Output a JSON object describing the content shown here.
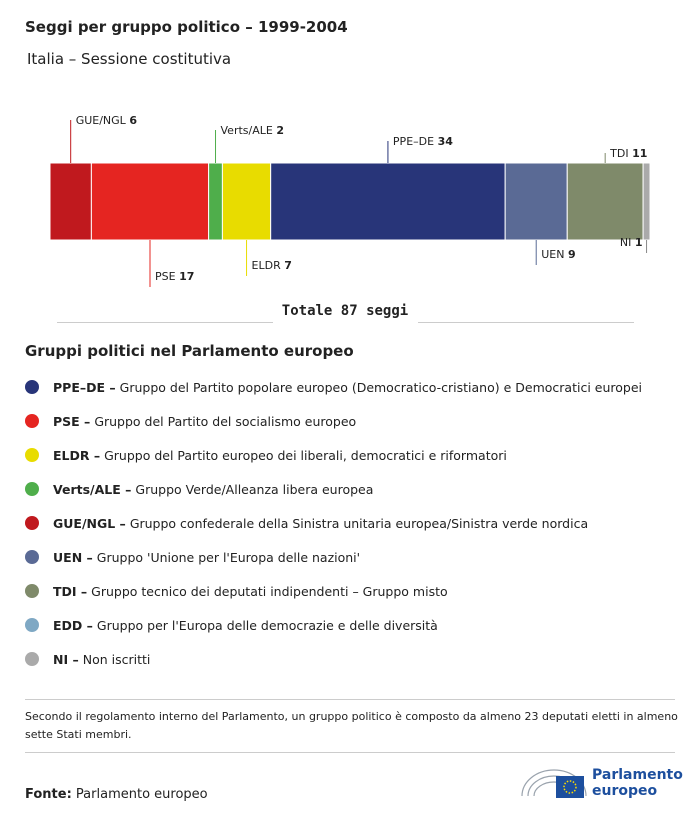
{
  "chart_data": {
    "type": "stacked-bar",
    "title": "Seggi per gruppo politico – 1999-2004",
    "subtitle": "Italia – Sessione costitutiva",
    "series": [
      {
        "name": "GUE/NGL",
        "color": "#c0191e",
        "values": [
          6
        ]
      },
      {
        "name": "PSE",
        "color": "#e52521",
        "values": [
          17
        ]
      },
      {
        "name": "Verts/ALE",
        "color": "#4fae4b",
        "values": [
          2
        ]
      },
      {
        "name": "ELDR",
        "color": "#e8dc00",
        "values": [
          7
        ]
      },
      {
        "name": "PPE–DE",
        "color": "#283579",
        "values": [
          34
        ]
      },
      {
        "name": "UEN",
        "color": "#5a6a95",
        "values": [
          9
        ]
      },
      {
        "name": "TDI",
        "color": "#7f8a6a",
        "values": [
          11
        ]
      },
      {
        "name": "NI",
        "color": "#aaaaaa",
        "values": [
          1
        ]
      }
    ],
    "total_label": "Totale 87 seggi"
  },
  "legend": {
    "title": "Gruppi politici nel Parlamento europeo",
    "items": [
      {
        "abbr": "PPE–DE –",
        "description": "Gruppo del Partito popolare europeo (Democratico-cristiano) e Democratici europei",
        "color": "#283579"
      },
      {
        "abbr": "PSE –",
        "description": "Gruppo del Partito del socialismo europeo",
        "color": "#e52521"
      },
      {
        "abbr": "ELDR –",
        "description": "Gruppo del Partito europeo dei liberali, democratici e riformatori",
        "color": "#e8dc00"
      },
      {
        "abbr": "Verts/ALE –",
        "description": "Gruppo Verde/Alleanza libera europea",
        "color": "#4fae4b"
      },
      {
        "abbr": "GUE/NGL –",
        "description": "Gruppo confederale della Sinistra unitaria europea/Sinistra verde nordica",
        "color": "#c0191e"
      },
      {
        "abbr": "UEN –",
        "description": "Gruppo 'Unione per l'Europa delle nazioni'",
        "color": "#5a6a95"
      },
      {
        "abbr": "TDI –",
        "description": "Gruppo tecnico dei deputati indipendenti – Gruppo misto",
        "color": "#7f8a6a"
      },
      {
        "abbr": "EDD –",
        "description": "Gruppo per l'Europa delle democrazie e delle diversità",
        "color": "#7fa8c4"
      },
      {
        "abbr": "NI –",
        "description": "Non iscritti",
        "color": "#aaaaaa"
      }
    ]
  },
  "footnote": "Secondo il regolamento interno del Parlamento, un gruppo politico è composto da almeno 23 deputati eletti in almeno sette Stati membri.",
  "source": {
    "label": "Fonte:",
    "text": "Parlamento europeo"
  },
  "logo": {
    "line1": "Parlamento",
    "line2": "europeo"
  }
}
